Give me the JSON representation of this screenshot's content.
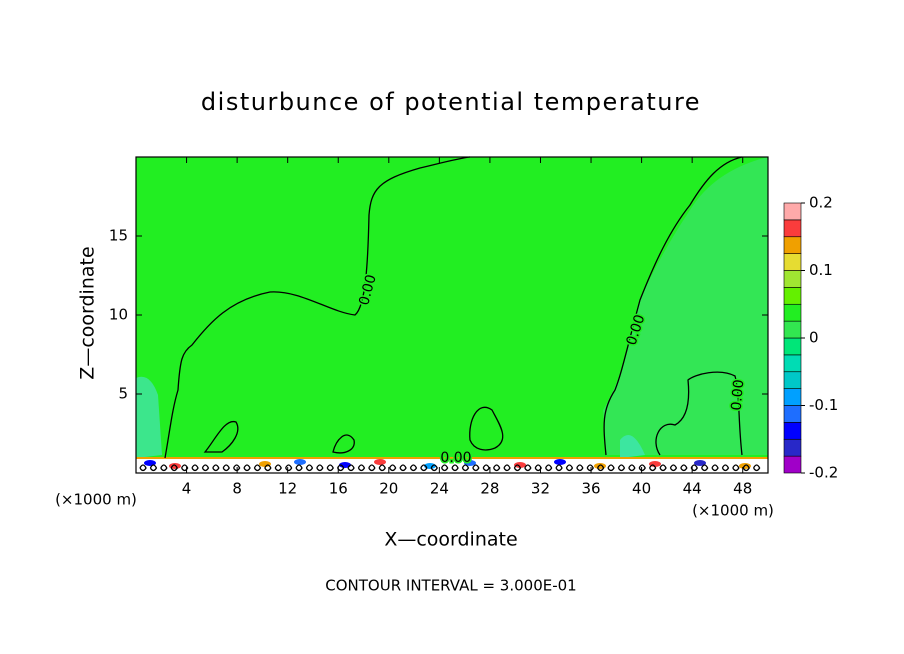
{
  "chart_data": {
    "type": "contour",
    "title": "disturbunce of potential temperature",
    "x_label": "X—coordinate",
    "y_label": "Z—coordinate",
    "x_unit": "(×1000 m)",
    "y_unit": "(×1000 m)",
    "footnote": "CONTOUR INTERVAL = 3.000E-01",
    "xlim": [
      0,
      50
    ],
    "xticks": [
      4,
      8,
      12,
      16,
      20,
      24,
      28,
      32,
      36,
      40,
      44,
      48
    ],
    "ylim": [
      0,
      20
    ],
    "yticks": [
      5,
      10,
      15
    ],
    "background_color": "#22ee22",
    "colorbar": {
      "lim": [
        -0.2,
        0.2
      ],
      "ticks": [
        -0.2,
        -0.1,
        0,
        0.1,
        0.2
      ],
      "colors": [
        "#a000c8",
        "#2828c8",
        "#0000ff",
        "#1e6eff",
        "#00a0ff",
        "#00c8c8",
        "#00dcb4",
        "#00e678",
        "#32e650",
        "#22ee22",
        "#64f000",
        "#a0e632",
        "#e6dc32",
        "#f0a000",
        "#fa3c3c",
        "#ffaaaa"
      ]
    },
    "contour_labels": [
      {
        "value": 0,
        "label": "0.00"
      },
      {
        "value": 0,
        "label": "0.00"
      },
      {
        "value": 0,
        "label": "0.00"
      },
      {
        "value": 0,
        "label": "0.00"
      }
    ]
  }
}
